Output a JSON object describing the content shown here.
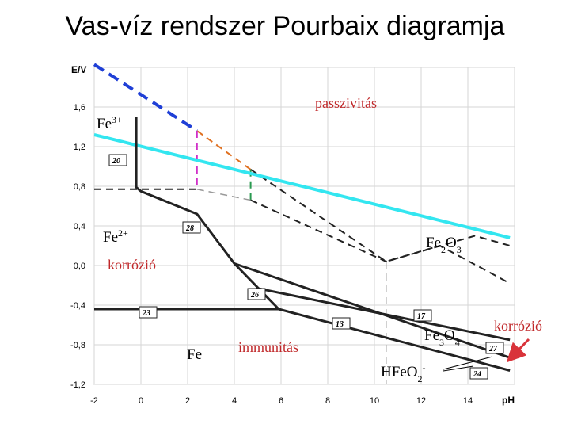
{
  "title": "Vas-víz rendszer Pourbaix diagramja",
  "chart_data": {
    "type": "line",
    "xlabel": "pH",
    "ylabel": "E/V",
    "xlim": [
      -2,
      16
    ],
    "ylim": [
      -1.2,
      2.0
    ],
    "x_ticks": [
      "-2",
      "0",
      "2",
      "4",
      "6",
      "8",
      "10",
      "12",
      "14"
    ],
    "y_ticks": [
      "1,6",
      "1,2",
      "0,8",
      "0,4",
      "0,0",
      "-0,4",
      "-0,8",
      "-1,2"
    ],
    "grid": true,
    "series": [
      {
        "style": "dashed",
        "color": "#1f3fd6",
        "x": [
          -2,
          2.4
        ],
        "y": [
          2.03,
          1.36
        ]
      },
      {
        "style": "dashed",
        "color": "#e07020",
        "x": [
          2.4,
          4.7
        ],
        "y": [
          1.36,
          0.97
        ]
      },
      {
        "style": "dashed",
        "color": "#222222",
        "x": [
          4.7,
          10.5,
          14.3,
          15.8
        ],
        "y": [
          0.97,
          0.04,
          0.3,
          0.2
        ]
      },
      {
        "style": "dashed",
        "color": "#d030c8",
        "x": [
          2.4,
          2.4
        ],
        "y": [
          1.36,
          0.77
        ]
      },
      {
        "style": "dashed",
        "color": "#2a9a50",
        "x": [
          4.7,
          4.7
        ],
        "y": [
          0.97,
          0.66
        ]
      },
      {
        "style": "dashed",
        "color": "#222222",
        "x": [
          -2,
          2.4
        ],
        "y": [
          0.77,
          0.77
        ]
      },
      {
        "style": "dashed",
        "color": "#999999",
        "x": [
          2.4,
          4.7
        ],
        "y": [
          0.77,
          0.66
        ]
      },
      {
        "style": "dashed",
        "color": "#222222",
        "x": [
          4.7,
          10.5,
          12.8,
          15.8
        ],
        "y": [
          0.66,
          0.04,
          0.2,
          -0.18
        ]
      },
      {
        "style": "dashed",
        "color": "#aaaaaa",
        "x": [
          10.5,
          10.5
        ],
        "y": [
          0.04,
          -1.2
        ]
      },
      {
        "style": "solid",
        "color": "#33e6f0",
        "x": [
          -2,
          15.8
        ],
        "y": [
          1.32,
          0.28
        ]
      },
      {
        "style": "solid",
        "color": "#222222",
        "x": [
          -0.2,
          -0.2,
          0.0,
          2.4,
          4.0,
          5.9
        ],
        "y": [
          1.5,
          0.79,
          0.75,
          0.52,
          0.02,
          -0.44
        ]
      },
      {
        "style": "solid",
        "color": "#222222",
        "x": [
          -2,
          5.9
        ],
        "y": [
          -0.44,
          -0.44
        ]
      },
      {
        "style": "solid",
        "color": "#222222",
        "x": [
          5.0,
          15.8
        ],
        "y": [
          -0.23,
          -0.75
        ]
      },
      {
        "style": "solid",
        "color": "#222222",
        "x": [
          4.0,
          15.8
        ],
        "y": [
          0.02,
          -0.93
        ]
      },
      {
        "style": "solid",
        "color": "#222222",
        "x": [
          5.9,
          15.8
        ],
        "y": [
          -0.44,
          -1.06
        ]
      }
    ],
    "species": [
      {
        "label": "Fe",
        "sup": "3+",
        "sub": ""
      },
      {
        "label": "Fe",
        "sup": "2+",
        "sub": ""
      },
      {
        "label": "Fe",
        "sup": "",
        "sub": ""
      },
      {
        "label": "Fe",
        "sub": "2",
        "mid": "O",
        "sub2": "3"
      },
      {
        "label": "Fe",
        "sub": "3",
        "mid": "O",
        "sub2": "4"
      },
      {
        "label": "HFeO",
        "sub": "2",
        "sup": "-"
      }
    ],
    "annotations": [
      "passzivitás",
      "korrózió",
      "immunitás",
      "korrózió"
    ],
    "line_numbers": [
      "20",
      "28",
      "26",
      "23",
      "13",
      "17",
      "27",
      "24"
    ]
  }
}
